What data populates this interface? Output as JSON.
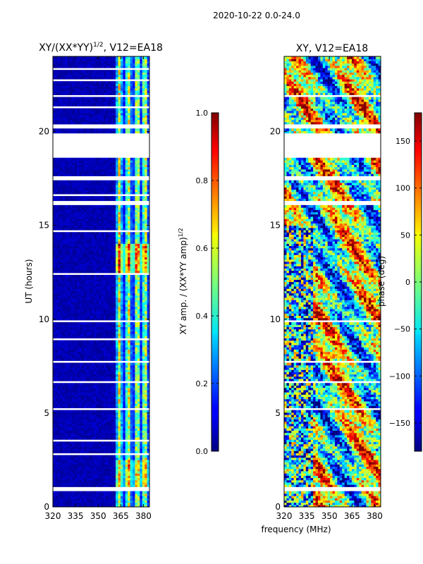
{
  "figure": {
    "suptitle": "2020-10-22 0.0-24.0",
    "xlabel_shared": "frequency (MHz)"
  },
  "colors": {
    "background": "#ffffff",
    "low": "#00007f",
    "blank": "#ffffff"
  },
  "chart_data": [
    {
      "type": "heatmap",
      "title": "XY/(XX*YY)",
      "title_exp": "1/2",
      "title_tail": ", V12=EA18",
      "xlabel": "",
      "ylabel": "UT (hours)",
      "xlim": [
        320,
        384
      ],
      "ylim": [
        0,
        24
      ],
      "xticks": [
        320,
        335,
        350,
        365,
        380
      ],
      "yticks": [
        0,
        5,
        10,
        15,
        20
      ],
      "bright_channels_mhz": [
        364,
        370,
        376,
        381
      ],
      "flagged_hours": [
        [
          0.85,
          1.05
        ],
        [
          2.8,
          2.9
        ],
        [
          3.5,
          3.6
        ],
        [
          5.2,
          5.25
        ],
        [
          6.0,
          6.05
        ],
        [
          6.55,
          6.75
        ],
        [
          7.7,
          7.85
        ],
        [
          8.9,
          8.95
        ],
        [
          9.8,
          9.95
        ],
        [
          11.0,
          11.05
        ],
        [
          12.4,
          12.5
        ],
        [
          14.6,
          14.7
        ],
        [
          16.1,
          16.3
        ],
        [
          16.55,
          16.7
        ],
        [
          17.4,
          17.6
        ],
        [
          18.65,
          19.95
        ],
        [
          20.1,
          20.4
        ],
        [
          21.3,
          21.4
        ],
        [
          21.8,
          21.95
        ],
        [
          22.7,
          22.8
        ],
        [
          23.3,
          23.4
        ]
      ],
      "colorbar": {
        "label": "XY amp. / (XX*YY amp)",
        "label_exp": "1/2",
        "ticks": [
          0.0,
          0.2,
          0.4,
          0.6,
          0.8,
          1.0
        ],
        "tick_labels": [
          "0.0",
          "0.2",
          "0.4",
          "0.6",
          "0.8",
          "1.0"
        ],
        "range": [
          0.0,
          1.0
        ]
      }
    },
    {
      "type": "heatmap",
      "title": "XY, V12=EA18",
      "xlabel": "frequency (MHz)",
      "ylabel": "",
      "xlim": [
        320,
        384
      ],
      "ylim": [
        0,
        24
      ],
      "xticks": [
        320,
        335,
        350,
        365,
        380
      ],
      "yticks": [
        0,
        5,
        10,
        15,
        20
      ],
      "flagged_hours": [
        [
          0.85,
          1.05
        ],
        [
          5.2,
          5.25
        ],
        [
          6.55,
          6.75
        ],
        [
          7.7,
          7.85
        ],
        [
          9.8,
          9.95
        ],
        [
          16.1,
          16.3
        ],
        [
          17.4,
          17.6
        ],
        [
          18.65,
          19.95
        ],
        [
          20.1,
          20.4
        ],
        [
          21.8,
          21.95
        ]
      ],
      "colorbar": {
        "label": "phase (deg)",
        "ticks": [
          -150,
          -100,
          -50,
          0,
          50,
          100,
          150
        ],
        "tick_labels": [
          "−150",
          "−100",
          "−50",
          "0",
          "50",
          "100",
          "150"
        ],
        "range": [
          -180,
          180
        ]
      }
    }
  ]
}
